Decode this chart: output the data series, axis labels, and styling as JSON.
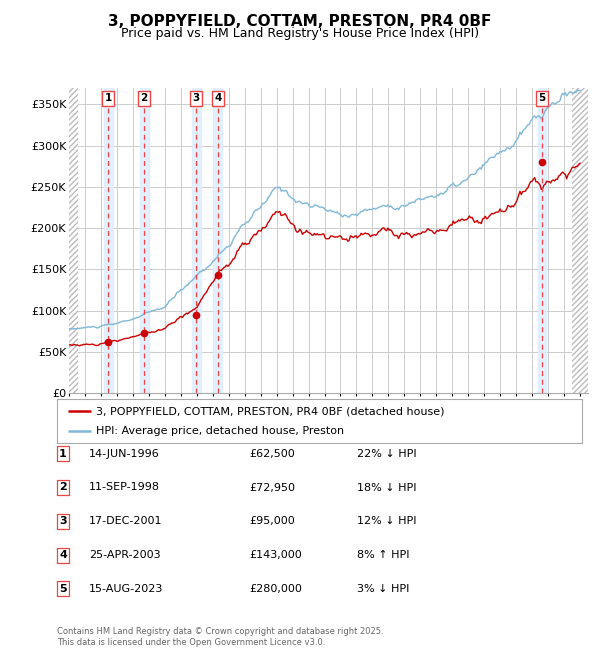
{
  "title": "3, POPPYFIELD, COTTAM, PRESTON, PR4 0BF",
  "subtitle": "Price paid vs. HM Land Registry's House Price Index (HPI)",
  "title_fontsize": 11,
  "subtitle_fontsize": 9,
  "ylabel_ticks": [
    "£0",
    "£50K",
    "£100K",
    "£150K",
    "£200K",
    "£250K",
    "£300K",
    "£350K"
  ],
  "ytick_values": [
    0,
    50000,
    100000,
    150000,
    200000,
    250000,
    300000,
    350000
  ],
  "ylim": [
    0,
    370000
  ],
  "xlim_start": 1994.0,
  "xlim_end": 2026.5,
  "hpi_color": "#7fb8d8",
  "price_color": "#cc0000",
  "sale_marker_color": "#cc0000",
  "dashed_line_color": "#ee4444",
  "shade_color": "#ddeeff",
  "grid_color": "#cccccc",
  "background_color": "#ffffff",
  "hatch_color": "#bbbbbb",
  "sales": [
    {
      "num": 1,
      "date_label": "14-JUN-1996",
      "date_x": 1996.45,
      "price": 62500,
      "pct": "22%",
      "dir": "↓",
      "hpi_label": "HPI"
    },
    {
      "num": 2,
      "date_label": "11-SEP-1998",
      "date_x": 1998.7,
      "price": 72950,
      "pct": "18%",
      "dir": "↓",
      "hpi_label": "HPI"
    },
    {
      "num": 3,
      "date_label": "17-DEC-2001",
      "date_x": 2001.96,
      "price": 95000,
      "pct": "12%",
      "dir": "↓",
      "hpi_label": "HPI"
    },
    {
      "num": 4,
      "date_label": "25-APR-2003",
      "date_x": 2003.32,
      "price": 143000,
      "pct": "8%",
      "dir": "↑",
      "hpi_label": "HPI"
    },
    {
      "num": 5,
      "date_label": "15-AUG-2023",
      "date_x": 2023.62,
      "price": 280000,
      "pct": "3%",
      "dir": "↓",
      "hpi_label": "HPI"
    }
  ],
  "legend_entries": [
    "3, POPPYFIELD, COTTAM, PRESTON, PR4 0BF (detached house)",
    "HPI: Average price, detached house, Preston"
  ],
  "footer": "Contains HM Land Registry data © Crown copyright and database right 2025.\nThis data is licensed under the Open Government Licence v3.0."
}
